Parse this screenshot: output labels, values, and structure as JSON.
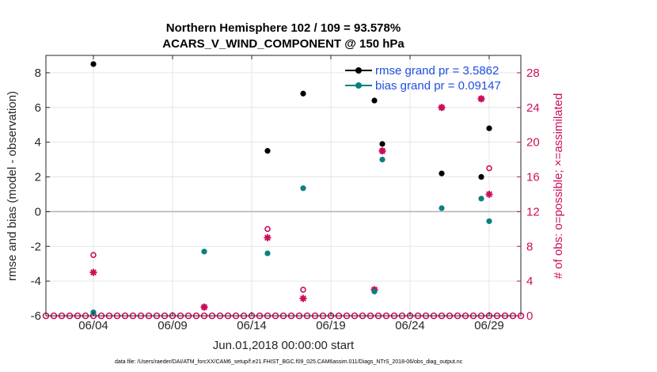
{
  "chart_data": {
    "type": "scatter",
    "title_lines": [
      "Northern Hemisphere 102 / 109 = 93.578%",
      "ACARS_V_WIND_COMPONENT @ 150 hPa"
    ],
    "xlabel": "Jun.01,2018 00:00:00 start",
    "ylabel": "rmse and bias (model - observation)",
    "y2label": "# of obs: o=possible; ×=assimilated",
    "x_range": [
      1,
      31
    ],
    "ylim": [
      -6,
      9
    ],
    "y2lim": [
      0,
      30
    ],
    "x_ticks": [
      {
        "value": 4,
        "label": "06/04"
      },
      {
        "value": 9,
        "label": "06/09"
      },
      {
        "value": 14,
        "label": "06/14"
      },
      {
        "value": 19,
        "label": "06/19"
      },
      {
        "value": 24,
        "label": "06/24"
      },
      {
        "value": 29,
        "label": "06/29"
      }
    ],
    "y_ticks": [
      -6,
      -4,
      -2,
      0,
      2,
      4,
      6,
      8
    ],
    "y2_ticks": [
      0,
      4,
      8,
      12,
      16,
      20,
      24,
      28
    ],
    "grid": true,
    "legend_position": "top-right",
    "series": [
      {
        "name": "rmse grand pr = 3.5862",
        "color": "#000000",
        "points": [
          [
            4,
            8.5
          ],
          [
            15,
            3.5
          ],
          [
            17.25,
            6.8
          ],
          [
            21.75,
            6.4
          ],
          [
            22.25,
            3.9
          ],
          [
            26,
            2.2
          ],
          [
            28.5,
            2.0
          ],
          [
            29,
            4.8
          ]
        ]
      },
      {
        "name": "bias grand pr = 0.09147",
        "color": "#0a8080",
        "points": [
          [
            4,
            -5.8
          ],
          [
            11,
            -2.3
          ],
          [
            15,
            -2.4
          ],
          [
            17.25,
            1.35
          ],
          [
            21.75,
            -4.6
          ],
          [
            22.25,
            3.0
          ],
          [
            26,
            0.2
          ],
          [
            28.5,
            0.75
          ],
          [
            29,
            -0.55
          ]
        ]
      }
    ],
    "obs_possible": {
      "name": "possible",
      "color": "#cc0f5a",
      "points": [
        [
          4,
          7
        ],
        [
          11,
          1
        ],
        [
          15,
          10
        ],
        [
          17.25,
          3
        ],
        [
          21.75,
          3
        ],
        [
          22.25,
          19
        ],
        [
          26,
          24
        ],
        [
          28.5,
          25
        ],
        [
          29,
          17
        ]
      ]
    },
    "obs_assimilated": {
      "name": "assimilated",
      "color": "#cc0f5a",
      "points": [
        [
          4,
          5
        ],
        [
          11,
          1
        ],
        [
          15,
          9
        ],
        [
          17.25,
          2
        ],
        [
          21.75,
          3
        ],
        [
          22.25,
          19
        ],
        [
          26,
          24
        ],
        [
          28.5,
          25
        ],
        [
          29,
          14
        ]
      ]
    },
    "footnote": "data file: /Users/raeder/DAI/ATM_forcXX/CAM6_setup/f.e21.FHIST_BGC.f09_025.CAM6assim.011/Diags_NTrS_2018-06/obs_diag_output.nc"
  }
}
